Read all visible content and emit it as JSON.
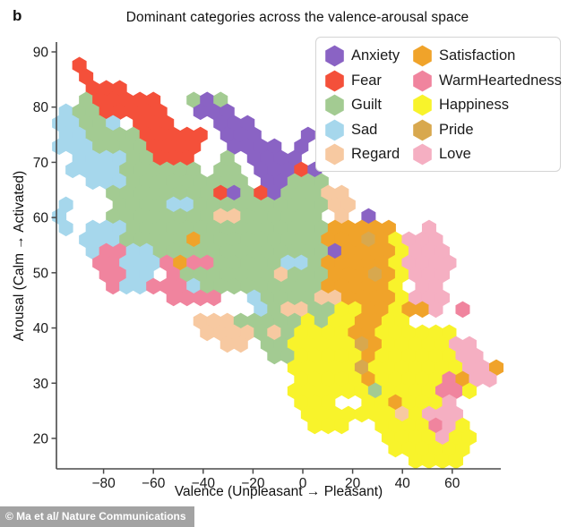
{
  "meta": {
    "panel_label": "b"
  },
  "watermark": "© Ma et al/ Nature Communications",
  "chart_data": {
    "type": "hexbin",
    "title": "Dominant categories across the valence-arousal space",
    "xlabel": "Valence (Unpleasant → Pleasant)",
    "ylabel": "Arousal (Calm → Activated)",
    "xlim": [
      -99,
      80
    ],
    "ylim": [
      15,
      93
    ],
    "xticks": [
      -80,
      -60,
      -40,
      -20,
      0,
      20,
      40,
      60
    ],
    "yticks": [
      90,
      80,
      70,
      60,
      50,
      40,
      30,
      20
    ],
    "grid": false,
    "legend_position": "top-right",
    "categories": {
      "A": {
        "label": "Anxiety",
        "color": "#8a63c4"
      },
      "F": {
        "label": "Fear",
        "color": "#f4503a"
      },
      "G": {
        "label": "Guilt",
        "color": "#a3cb92"
      },
      "S": {
        "label": "Sad",
        "color": "#a6d7ec"
      },
      "R": {
        "label": "Regard",
        "color": "#f7c9a1"
      },
      "T": {
        "label": "Satisfaction",
        "color": "#f0a32a"
      },
      "W": {
        "label": "WarmHeartedness",
        "color": "#f0849e"
      },
      "H": {
        "label": "Happiness",
        "color": "#f8f32b"
      },
      "P": {
        "label": "Pride",
        "color": "#d8a84e"
      },
      "L": {
        "label": "Love",
        "color": "#f5afc2"
      }
    },
    "legend_columns": [
      [
        "A",
        "F",
        "G",
        "S",
        "R"
      ],
      [
        "T",
        "W",
        "H",
        "P",
        "L"
      ]
    ],
    "hex_grid": {
      "comment": "hex centers: valence = v0 + dv*i + (j%2)*odd_dv ; arousal = a0 - da*j",
      "v0": -97.8,
      "dv": 5.4,
      "odd_dv": 2.7,
      "a0": 89.7,
      "da": 2.107
    },
    "rows": [
      {
        "j": 1,
        "i": 1,
        "c": "F"
      },
      {
        "j": 2,
        "i": 2,
        "c": "F"
      },
      {
        "j": 3,
        "i": 2,
        "c": "FFF"
      },
      {
        "j": 4,
        "i": 2,
        "c": "GFFFFF..GAG"
      },
      {
        "j": 5,
        "i": 0,
        "c": "SGGFFFFF..AAA"
      },
      {
        "j": 6,
        "i": 0,
        "c": "SSGGS.FFF...AAA"
      },
      {
        "j": 7,
        "i": 0,
        "c": "SSGGGGFFFFF.AAA...A"
      },
      {
        "j": 8,
        "i": 0,
        "c": "SSSGGGGFFFF..AAAA.A"
      },
      {
        "j": 9,
        "i": 1,
        "c": "SSSSGGFFF..G.AAAA"
      },
      {
        "j": 10,
        "i": 1,
        "c": "SSSSGGGGGG.GG.AAAFA"
      },
      {
        "j": 11,
        "i": 2,
        "c": "SSSGGGGGGGGG.AAGGG"
      },
      {
        "j": 12,
        "i": 4,
        "c": "GGGGGGGGFAGFAGGGRR"
      },
      {
        "j": 13,
        "i": 0,
        "c": "S...GGGGSSGGGGGGGGGGRR"
      },
      {
        "j": 14,
        "i": 0,
        "c": "S...GGGGGGGGRRGGGGGG.R.A"
      },
      {
        "j": 15,
        "i": 0,
        "c": "S.SSSGGGGGGGGGGGGGGGTTTTT..L"
      },
      {
        "j": 16,
        "i": 2,
        "c": "SSSGGGGGTGGGGGGGGGTTTPTHLLL"
      },
      {
        "j": 17,
        "i": 2,
        "c": "SWWSSGGGGGGGGGGGGGATTTTHLLL"
      },
      {
        "j": 18,
        "i": 3,
        "c": "WWSSSWTWWGGGGGSSGTTTTTHLLLL"
      },
      {
        "j": 19,
        "i": 3,
        "c": "WWSS.WGGGGGGGRGGGTTTPTHLLL"
      },
      {
        "j": 20,
        "i": 4,
        "c": "WSSWWWSGGGGGGGGGTTTTTH.LL"
      },
      {
        "j": 21,
        "i": 8,
        "c": "WWWW..SGGGGRRTTTTHLLL"
      },
      {
        "j": 22,
        "i": 15,
        "c": "SGRRGGHHTTHTTL.W"
      },
      {
        "j": 23,
        "i": 10,
        "c": "RRRGGGGGHGHHTTHH"
      },
      {
        "j": 24,
        "i": 11,
        "c": "RRRRGRGHHHHTTHHHHHH"
      },
      {
        "j": 25,
        "i": 12,
        "c": "RR.GGHHHHHPTHHHHHLL"
      },
      {
        "j": 26,
        "i": 16,
        "c": "GGHHHHHTHHHHHHLL"
      },
      {
        "j": 27,
        "i": 17,
        "c": "HHHHHPHHHHHHHLLT"
      },
      {
        "j": 28,
        "i": 18,
        "c": "HHHHHTHHHHHWTLL"
      },
      {
        "j": 29,
        "i": 17,
        "c": "HHHHHHGHHHHWWH"
      },
      {
        "j": 30,
        "i": 18,
        "c": "HHH..HHTHHHL"
      },
      {
        "j": 31,
        "i": 18,
        "c": "HHHHHHHRHLLL"
      },
      {
        "j": 32,
        "i": 19,
        "c": "HHH..HHHHWLH"
      },
      {
        "j": 33,
        "i": 24,
        "c": "HHHHLHH"
      },
      {
        "j": 34,
        "i": 25,
        "c": "HHHHHH"
      },
      {
        "j": 35,
        "i": 26,
        "c": "HHHH"
      }
    ]
  }
}
